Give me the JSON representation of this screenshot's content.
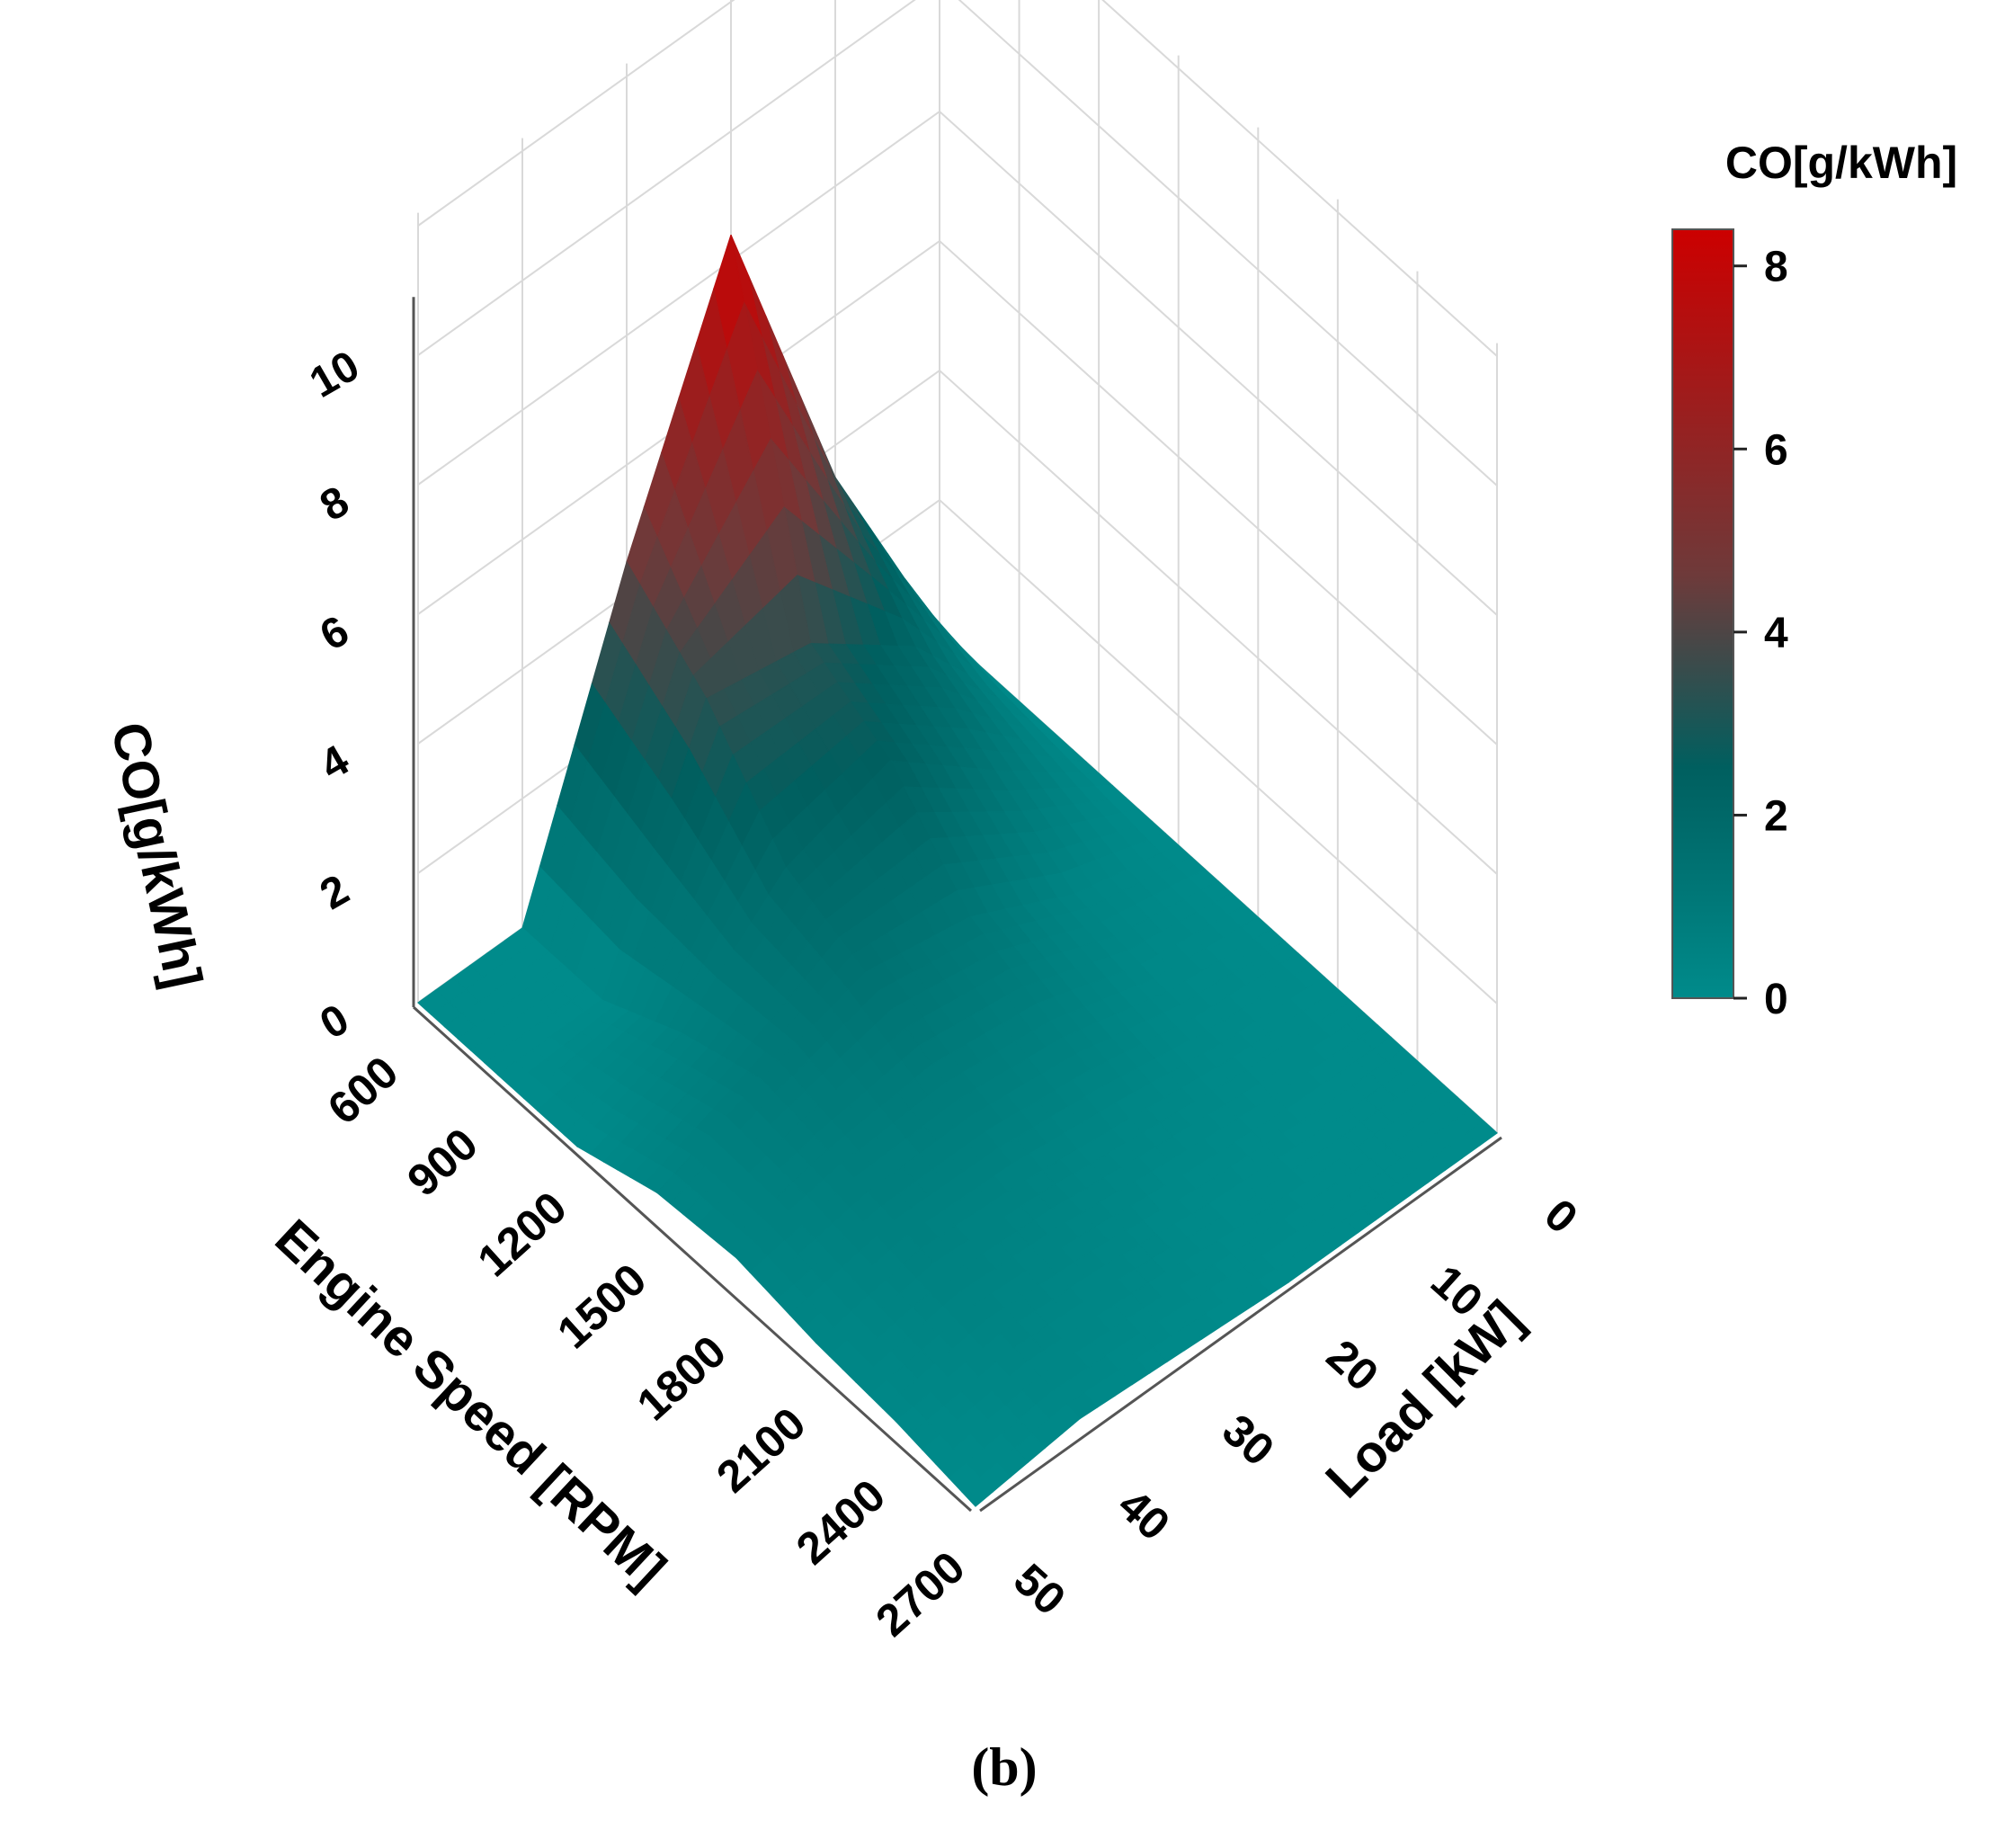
{
  "chart_data": {
    "type": "surface3d",
    "title": "",
    "caption": "(b)",
    "x_axis": {
      "label": "Engine Speed [RPM]",
      "ticks": [
        600,
        900,
        1200,
        1500,
        1800,
        2100,
        2400,
        2700
      ],
      "range": [
        600,
        2700
      ]
    },
    "y_axis": {
      "label": "Load [kW]",
      "ticks": [
        0,
        10,
        20,
        30,
        40,
        50
      ],
      "range": [
        0,
        50
      ]
    },
    "z_axis": {
      "label": "CO[g/kWh]",
      "ticks": [
        0,
        2,
        4,
        6,
        8,
        10
      ],
      "range": [
        0,
        10
      ]
    },
    "colorbar": {
      "title": "CO[g/kWh]",
      "ticks": [
        0,
        2,
        4,
        6,
        8
      ],
      "range": [
        0,
        8.4
      ],
      "colors": [
        "#008b8b",
        "#005f5f",
        "#6e3a3a",
        "#cc0000"
      ]
    },
    "speeds": [
      600,
      900,
      1200,
      1500,
      1800,
      2100,
      2400,
      2700
    ],
    "loads": [
      0,
      10,
      20,
      30,
      40,
      50
    ],
    "values": [
      [
        0.0,
        3.5,
        8.4,
        4.5,
        0.0,
        0.0
      ],
      [
        0.0,
        2.0,
        3.2,
        3.5,
        0.0,
        0.0
      ],
      [
        0.0,
        1.2,
        2.5,
        2.0,
        0.6,
        0.0
      ],
      [
        0.0,
        0.4,
        1.2,
        1.5,
        1.0,
        0.4
      ],
      [
        0.0,
        0.2,
        0.7,
        0.9,
        0.8,
        0.5
      ],
      [
        0.0,
        0.1,
        0.3,
        0.5,
        0.6,
        0.3
      ],
      [
        0.0,
        0.0,
        0.1,
        0.3,
        0.4,
        0.2
      ],
      [
        0.0,
        0.0,
        0.0,
        0.1,
        0.2,
        0.0
      ]
    ],
    "grid": true
  }
}
